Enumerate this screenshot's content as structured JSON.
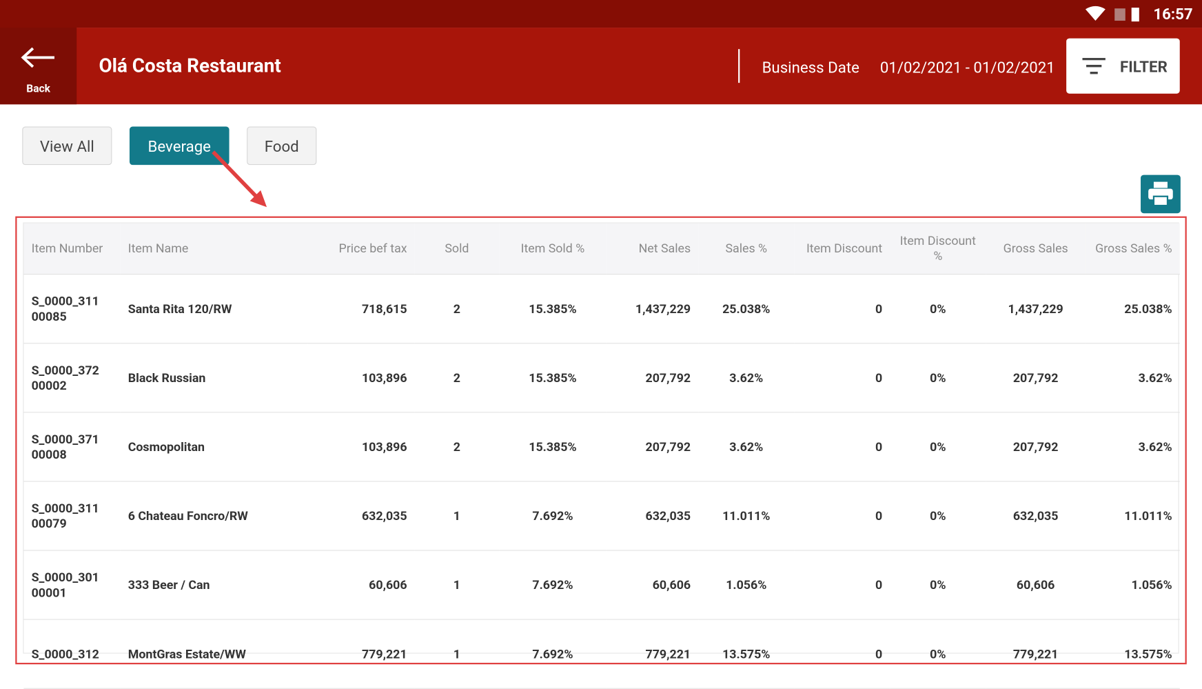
{
  "status_bar": {
    "time": "16:57"
  },
  "header": {
    "back": "Back",
    "title": "Olá Costa Restaurant",
    "date_label": "Business Date",
    "date_range": "01/02/2021 - 01/02/2021",
    "filter": "FILTER"
  },
  "tabs": [
    "View All",
    "Beverage",
    "Food"
  ],
  "table": {
    "columns": [
      "Item Number",
      "Item Name",
      "Price bef tax",
      "Sold",
      "Item Sold %",
      "Net Sales",
      "Sales %",
      "Item Discount",
      "Item Discount %",
      "Gross Sales",
      "Gross Sales %"
    ],
    "rows": [
      [
        "S_0000_311 00085",
        "Santa Rita 120/RW",
        "718,615",
        "2",
        "15.385%",
        "1,437,229",
        "25.038%",
        "0",
        "0%",
        "1,437,229",
        "25.038%"
      ],
      [
        "S_0000_372 00002",
        "Black Russian",
        "103,896",
        "2",
        "15.385%",
        "207,792",
        "3.62%",
        "0",
        "0%",
        "207,792",
        "3.62%"
      ],
      [
        "S_0000_371 00008",
        "Cosmopolitan",
        "103,896",
        "2",
        "15.385%",
        "207,792",
        "3.62%",
        "0",
        "0%",
        "207,792",
        "3.62%"
      ],
      [
        "S_0000_311 00079",
        "6 Chateau Foncro/RW",
        "632,035",
        "1",
        "7.692%",
        "632,035",
        "11.011%",
        "0",
        "0%",
        "632,035",
        "11.011%"
      ],
      [
        "S_0000_301 00001",
        "333 Beer / Can",
        "60,606",
        "1",
        "7.692%",
        "60,606",
        "1.056%",
        "0",
        "0%",
        "60,606",
        "1.056%"
      ],
      [
        "S_0000_312",
        "MontGras Estate/WW",
        "779,221",
        "1",
        "7.692%",
        "779,221",
        "13.575%",
        "0",
        "0%",
        "779,221",
        "13.575%"
      ]
    ]
  }
}
